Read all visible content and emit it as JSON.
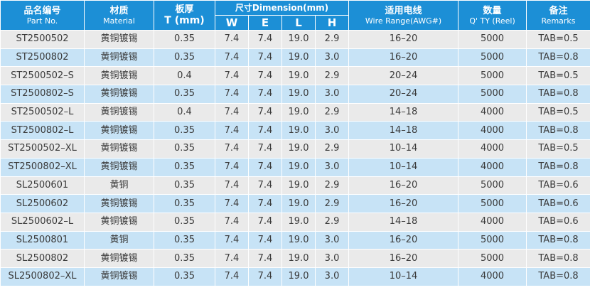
{
  "headers": {
    "part_zh": "品名编号",
    "part_en": "Part No.",
    "material_zh": "材质",
    "material_en": "Material",
    "thickness_zh": "板厚",
    "thickness_en": "T (mm)",
    "dimension": "尺寸Dimension(mm)",
    "dim_w": "W",
    "dim_e": "E",
    "dim_l": "L",
    "dim_h": "H",
    "wire_zh": "适用电线",
    "wire_en": "Wire Range(AWG#)",
    "qty_zh": "数量",
    "qty_en": "Q' TY (Reel)",
    "remarks_zh": "备注",
    "remarks_en": "Remarks"
  },
  "rows": [
    {
      "part": "ST2500502",
      "material": "黄铜镀锡",
      "t": "0.35",
      "w": "7.4",
      "e": "7.4",
      "l": "19.0",
      "h": "2.9",
      "wire": "16–20",
      "qty": "5000",
      "remarks": "TAB=0.5"
    },
    {
      "part": "ST2500802",
      "material": "黄铜镀锡",
      "t": "0.35",
      "w": "7.4",
      "e": "7.4",
      "l": "19.0",
      "h": "3.0",
      "wire": "16–20",
      "qty": "5000",
      "remarks": "TAB=0.8"
    },
    {
      "part": "ST2500502–S",
      "material": "黄铜镀锡",
      "t": "0.4",
      "w": "7.4",
      "e": "7.4",
      "l": "19.0",
      "h": "2.9",
      "wire": "20–24",
      "qty": "5000",
      "remarks": "TAB=0.5"
    },
    {
      "part": "ST2500802–S",
      "material": "黄铜镀锡",
      "t": "0.35",
      "w": "7.4",
      "e": "7.4",
      "l": "19.0",
      "h": "3.0",
      "wire": "20–24",
      "qty": "5000",
      "remarks": "TAB=0.8"
    },
    {
      "part": "ST2500502–L",
      "material": "黄铜镀锡",
      "t": "0.4",
      "w": "7.4",
      "e": "7.4",
      "l": "19.0",
      "h": "2.9",
      "wire": "14–18",
      "qty": "4000",
      "remarks": "TAB=0.5"
    },
    {
      "part": "ST2500802–L",
      "material": "黄铜镀锡",
      "t": "0.35",
      "w": "7.4",
      "e": "7.4",
      "l": "19.0",
      "h": "3.0",
      "wire": "14–18",
      "qty": "4000",
      "remarks": "TAB=0.8"
    },
    {
      "part": "ST2500502–XL",
      "material": "黄铜镀锡",
      "t": "0.35",
      "w": "7.4",
      "e": "7.4",
      "l": "19.0",
      "h": "2.9",
      "wire": "10–14",
      "qty": "4000",
      "remarks": "TAB=0.5"
    },
    {
      "part": "ST2500802–XL",
      "material": "黄铜镀锡",
      "t": "0.35",
      "w": "7.4",
      "e": "7.4",
      "l": "19.0",
      "h": "3.0",
      "wire": "10–14",
      "qty": "4000",
      "remarks": "TAB=0.8"
    },
    {
      "part": "SL2500601",
      "material": "黄铜",
      "t": "0.35",
      "w": "7.4",
      "e": "7.4",
      "l": "19.0",
      "h": "2.9",
      "wire": "16–20",
      "qty": "5000",
      "remarks": "TAB=0.6"
    },
    {
      "part": "SL2500602",
      "material": "黄铜镀锡",
      "t": "0.35",
      "w": "7.4",
      "e": "7.4",
      "l": "19.0",
      "h": "2.9",
      "wire": "16–20",
      "qty": "5000",
      "remarks": "TAB=0.6"
    },
    {
      "part": "SL2500602–L",
      "material": "黄铜镀锡",
      "t": "0.35",
      "w": "7.4",
      "e": "7.4",
      "l": "19.0",
      "h": "2.9",
      "wire": "14–18",
      "qty": "4000",
      "remarks": "TAB=0.6"
    },
    {
      "part": "SL2500801",
      "material": "黄铜",
      "t": "0.35",
      "w": "7.4",
      "e": "7.4",
      "l": "19.0",
      "h": "3.0",
      "wire": "16–20",
      "qty": "5000",
      "remarks": "TAB=0.8"
    },
    {
      "part": "SL2500802",
      "material": "黄铜镀锡",
      "t": "0.35",
      "w": "7.4",
      "e": "7.4",
      "l": "19.0",
      "h": "3.0",
      "wire": "16–20",
      "qty": "5000",
      "remarks": "TAB=0.8"
    },
    {
      "part": "SL2500802–XL",
      "material": "黄铜镀锡",
      "t": "0.35",
      "w": "7.4",
      "e": "7.4",
      "l": "19.0",
      "h": "3.0",
      "wire": "10–14",
      "qty": "4000",
      "remarks": "TAB=0.8"
    }
  ]
}
